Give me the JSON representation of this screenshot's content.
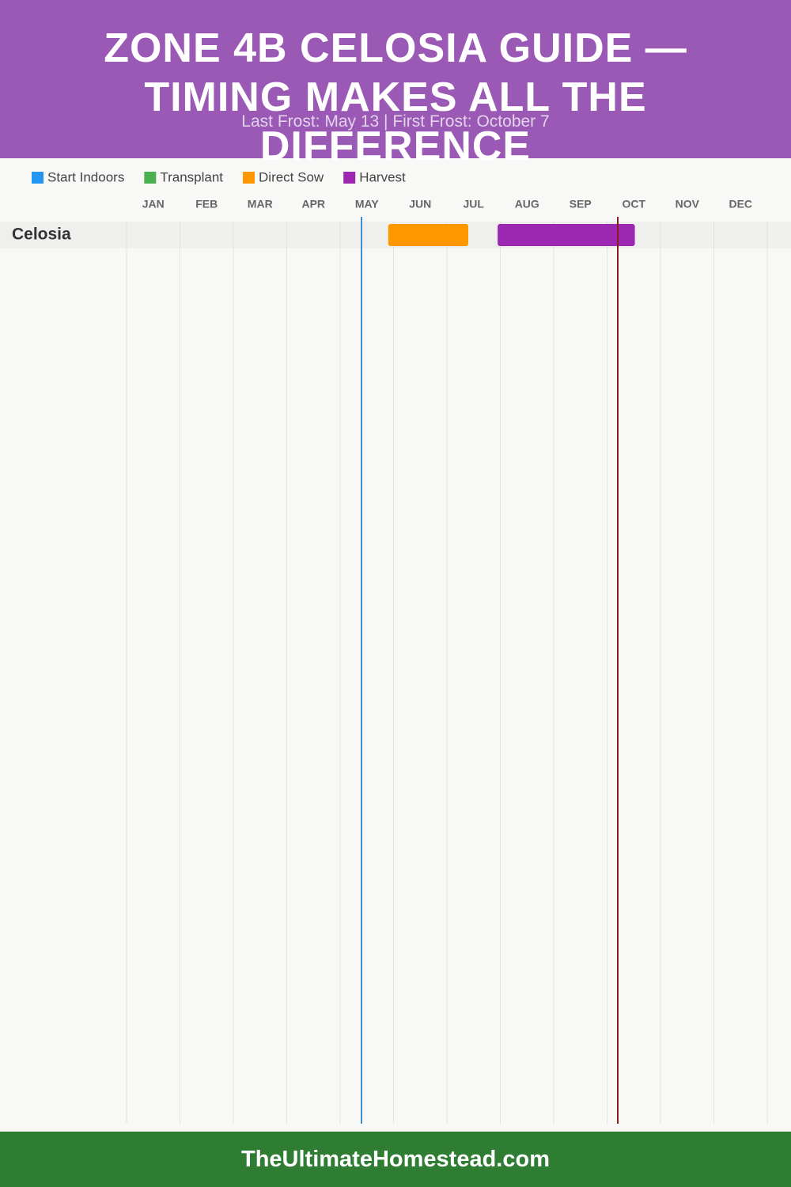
{
  "chart_data": {
    "type": "gantt",
    "title": "ZONE 4B CELOSIA GUIDE — TIMING MAKES ALL THE DIFFERENCE",
    "subtitle": "Last Frost: May 13 | First Frost: October 7",
    "months": [
      "JAN",
      "FEB",
      "MAR",
      "APR",
      "MAY",
      "JUN",
      "JUL",
      "AUG",
      "SEP",
      "OCT",
      "NOV",
      "DEC"
    ],
    "xlim": [
      0,
      12
    ],
    "rows": [
      "Celosia"
    ],
    "series": [
      {
        "name": "Start Indoors",
        "color": "#2196f3",
        "ranges": [
          []
        ]
      },
      {
        "name": "Transplant",
        "color": "#4caf50",
        "ranges": [
          []
        ]
      },
      {
        "name": "Direct Sow",
        "color": "#ff9800",
        "ranges": [
          [
            4.9,
            6.4
          ]
        ]
      },
      {
        "name": "Harvest",
        "color": "#9c27b0",
        "ranges": [
          [
            6.95,
            9.52
          ]
        ]
      }
    ],
    "frost_lines": [
      {
        "value": 4.4,
        "color": "#3a8fd0"
      },
      {
        "value": 9.2,
        "color": "#8b1a1a"
      }
    ],
    "footer": "TheUltimateHomestead.com"
  }
}
